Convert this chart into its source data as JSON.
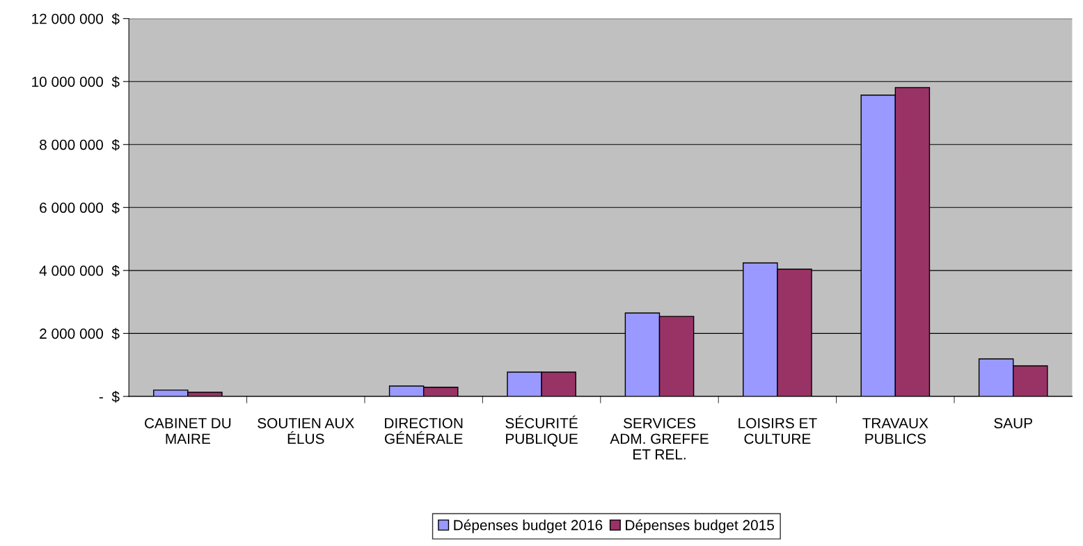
{
  "chart_data": {
    "type": "bar",
    "categories": [
      "CABINET DU\nMAIRE",
      "SOUTIEN AUX\nÉLUS",
      "DIRECTION\nGÉNÉRALE",
      "SÉCURITÉ\nPUBLIQUE",
      "SERVICES\nADM. GREFFE\nET REL.",
      "LOISIRS ET\nCULTURE",
      "TRAVAUX\nPUBLICS",
      "SAUP"
    ],
    "series": [
      {
        "name": "Dépenses budget 2016",
        "color": "#9999ff",
        "values": [
          200000,
          null,
          330000,
          770000,
          2650000,
          4240000,
          9570000,
          1190000
        ]
      },
      {
        "name": "Dépenses budget 2015",
        "color": "#993366",
        "values": [
          130000,
          null,
          290000,
          770000,
          2540000,
          4040000,
          9810000,
          970000
        ]
      }
    ],
    "ylim": [
      0,
      12000000
    ],
    "yticks": [
      {
        "value": 0,
        "label": "-  $"
      },
      {
        "value": 2000000,
        "label": "2 000 000  $"
      },
      {
        "value": 4000000,
        "label": "4 000 000  $"
      },
      {
        "value": 6000000,
        "label": "6 000 000  $"
      },
      {
        "value": 8000000,
        "label": "8 000 000  $"
      },
      {
        "value": 10000000,
        "label": "10 000 000  $"
      },
      {
        "value": 12000000,
        "label": "12 000 000  $"
      }
    ],
    "grid": "y",
    "legend": "bottom"
  }
}
